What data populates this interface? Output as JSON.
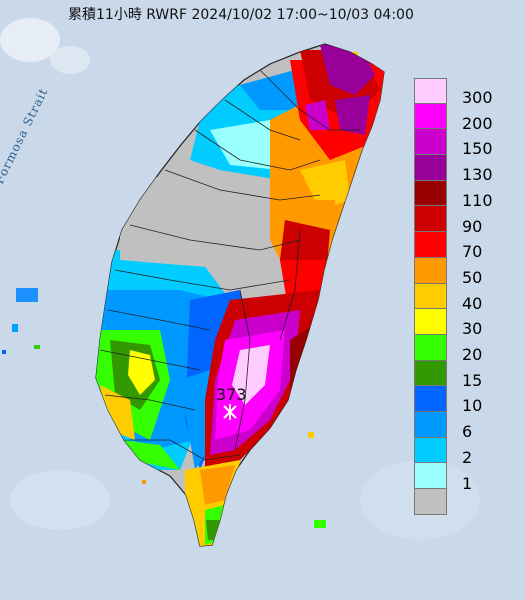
{
  "title": "累積11小時 RWRF 2024/10/02 17:00~10/03 04:00",
  "sea_label": "Formosa Strait",
  "max_value": "373",
  "legend": {
    "levels": [
      {
        "label": "300",
        "color": "#ffccff"
      },
      {
        "label": "200",
        "color": "#ff00ff"
      },
      {
        "label": "150",
        "color": "#cc00cc"
      },
      {
        "label": "130",
        "color": "#990099"
      },
      {
        "label": "110",
        "color": "#990000"
      },
      {
        "label": "90",
        "color": "#cc0000"
      },
      {
        "label": "70",
        "color": "#ff0000"
      },
      {
        "label": "50",
        "color": "#ff9900"
      },
      {
        "label": "40",
        "color": "#ffcc00"
      },
      {
        "label": "30",
        "color": "#ffff00"
      },
      {
        "label": "20",
        "color": "#33ff00"
      },
      {
        "label": "15",
        "color": "#339900"
      },
      {
        "label": "10",
        "color": "#0066ff"
      },
      {
        "label": "6",
        "color": "#0099ff"
      },
      {
        "label": "2",
        "color": "#00ccff"
      },
      {
        "label": "1",
        "color": "#99ffff"
      },
      {
        "label": "",
        "color": "#c0c0c0"
      }
    ]
  }
}
